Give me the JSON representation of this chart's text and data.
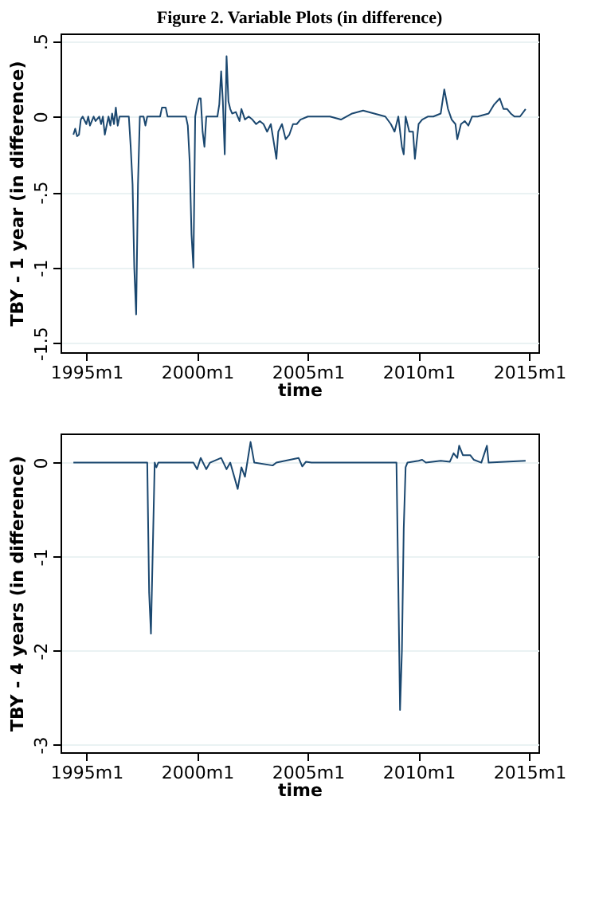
{
  "chart_data": [
    {
      "type": "line",
      "title": "Figure 2. Variable Plots (in difference)",
      "xlabel": "time",
      "ylabel": "TBY - 1 year (in difference)",
      "color": "#1a476f",
      "grid": "y",
      "x": [
        "1994-06",
        "1994-07",
        "1994-08",
        "1994-09",
        "1994-10",
        "1994-11",
        "1995-01",
        "1995-02",
        "1995-03",
        "1995-05",
        "1995-06",
        "1995-08",
        "1995-09",
        "1995-10",
        "1995-11",
        "1996-01",
        "1996-02",
        "1996-03",
        "1996-04",
        "1996-05",
        "1996-06",
        "1996-07",
        "1996-12",
        "1997-01",
        "1997-02",
        "1997-03",
        "1997-04",
        "1997-05",
        "1997-06",
        "1997-08",
        "1997-09",
        "1997-10",
        "1998-05",
        "1998-06",
        "1998-08",
        "1998-09",
        "1999-07",
        "1999-08",
        "1999-09",
        "1999-10",
        "1999-11",
        "1999-12",
        "2000-01",
        "2000-02",
        "2000-03",
        "2000-04",
        "2000-05",
        "2000-06",
        "2000-12",
        "2001-01",
        "2001-02",
        "2001-03",
        "2001-04",
        "2001-05",
        "2001-06",
        "2001-07",
        "2001-08",
        "2001-10",
        "2001-12",
        "2002-01",
        "2002-03",
        "2002-05",
        "2002-07",
        "2002-09",
        "2002-11",
        "2003-01",
        "2003-03",
        "2003-05",
        "2003-07",
        "2003-08",
        "2003-09",
        "2003-11",
        "2004-01",
        "2004-03",
        "2004-05",
        "2004-07",
        "2004-09",
        "2005-01",
        "2005-07",
        "2006-01",
        "2006-07",
        "2007-01",
        "2007-07",
        "2008-01",
        "2008-07",
        "2008-10",
        "2008-12",
        "2009-02",
        "2009-04",
        "2009-05",
        "2009-06",
        "2009-08",
        "2009-10",
        "2009-11",
        "2010-01",
        "2010-03",
        "2010-06",
        "2010-09",
        "2011-01",
        "2011-03",
        "2011-05",
        "2011-07",
        "2011-09",
        "2011-10",
        "2011-12",
        "2012-02",
        "2012-04",
        "2012-06",
        "2012-09",
        "2013-03",
        "2013-06",
        "2013-09",
        "2013-11",
        "2014-01",
        "2014-03",
        "2014-05",
        "2014-08",
        "2014-11"
      ],
      "values": [
        -0.12,
        -0.08,
        -0.13,
        -0.12,
        -0.02,
        0,
        -0.05,
        0,
        -0.06,
        0,
        -0.03,
        0,
        -0.05,
        0,
        -0.12,
        0,
        -0.06,
        0.02,
        -0.05,
        0.06,
        -0.06,
        0,
        0,
        -0.2,
        -0.45,
        -1.0,
        -1.31,
        -0.45,
        0,
        0,
        -0.06,
        0,
        0,
        0.06,
        0.06,
        0,
        0,
        -0.06,
        -0.3,
        -0.78,
        -1.0,
        0,
        0.07,
        0.12,
        0.12,
        -0.1,
        -0.2,
        0,
        0,
        0.08,
        0.3,
        0.1,
        -0.25,
        0.4,
        0.1,
        0.05,
        0.02,
        0.03,
        -0.03,
        0.05,
        -0.02,
        0,
        -0.02,
        -0.05,
        -0.03,
        -0.05,
        -0.1,
        -0.05,
        -0.2,
        -0.28,
        -0.1,
        -0.05,
        -0.15,
        -0.12,
        -0.05,
        -0.05,
        -0.02,
        0,
        0,
        0,
        -0.02,
        0.02,
        0.04,
        0.02,
        0,
        -0.05,
        -0.1,
        0,
        -0.2,
        -0.25,
        0,
        -0.1,
        -0.1,
        -0.28,
        -0.05,
        -0.02,
        0,
        0,
        0.02,
        0.18,
        0.05,
        -0.02,
        -0.05,
        -0.15,
        -0.05,
        -0.03,
        -0.06,
        0,
        0,
        0.02,
        0.08,
        0.12,
        0.05,
        0.05,
        0.02,
        0,
        0,
        0.05
      ],
      "xlim": [
        "1993-11",
        "2015-06"
      ],
      "xticks": [
        {
          "value": "1995-01",
          "label": "1995m1"
        },
        {
          "value": "2000-01",
          "label": "2000m1"
        },
        {
          "value": "2005-01",
          "label": "2005m1"
        },
        {
          "value": "2010-01",
          "label": "2010m1"
        },
        {
          "value": "2015-01",
          "label": "2015m1"
        }
      ],
      "ylim": [
        -1.56,
        0.55
      ],
      "yticks": [
        {
          "value": 0.5,
          "label": ".5"
        },
        0,
        {
          "value": -0.5,
          "label": "-.5"
        },
        -1,
        -1.5
      ]
    },
    {
      "type": "line",
      "xlabel": "time",
      "ylabel": "TBY - 4 years (in difference)",
      "color": "#1a476f",
      "grid": "y",
      "x": [
        "1994-06",
        "1997-10",
        "1997-11",
        "1997-12",
        "1998-01",
        "1998-02",
        "1998-03",
        "1998-04",
        "1999-11",
        "2000-01",
        "2000-03",
        "2000-06",
        "2000-08",
        "2001-02",
        "2001-05",
        "2001-07",
        "2001-11",
        "2002-01",
        "2002-03",
        "2002-06",
        "2002-08",
        "2003-06",
        "2003-08",
        "2004-08",
        "2004-10",
        "2004-12",
        "2005-03",
        "2009-01",
        "2009-02",
        "2009-03",
        "2009-04",
        "2009-05",
        "2009-06",
        "2009-07",
        "2010-01",
        "2010-03",
        "2010-05",
        "2011-01",
        "2011-06",
        "2011-08",
        "2011-10",
        "2011-11",
        "2012-01",
        "2012-05",
        "2012-07",
        "2012-11",
        "2013-02",
        "2013-03",
        "2014-11"
      ],
      "values": [
        0,
        0,
        -1.38,
        -1.82,
        -0.9,
        0,
        -0.05,
        0,
        0,
        -0.07,
        0.05,
        -0.07,
        0,
        0.05,
        -0.07,
        0,
        -0.28,
        -0.05,
        -0.15,
        0.22,
        0,
        -0.03,
        0,
        0.05,
        -0.04,
        0.01,
        0,
        0,
        -1.33,
        -2.63,
        -2.0,
        -0.7,
        -0.05,
        0,
        0.02,
        0.03,
        0,
        0.02,
        0.01,
        0.1,
        0.05,
        0.18,
        0.08,
        0.08,
        0.03,
        0,
        0.18,
        0,
        0.02
      ],
      "xlim": [
        "1993-11",
        "2015-06"
      ],
      "xticks": [
        {
          "value": "1995-01",
          "label": "1995m1"
        },
        {
          "value": "2000-01",
          "label": "2000m1"
        },
        {
          "value": "2005-01",
          "label": "2005m1"
        },
        {
          "value": "2010-01",
          "label": "2010m1"
        },
        {
          "value": "2015-01",
          "label": "2015m1"
        }
      ],
      "ylim": [
        -3.08,
        0.31
      ],
      "yticks": [
        0,
        -1,
        -2,
        -3
      ]
    }
  ]
}
